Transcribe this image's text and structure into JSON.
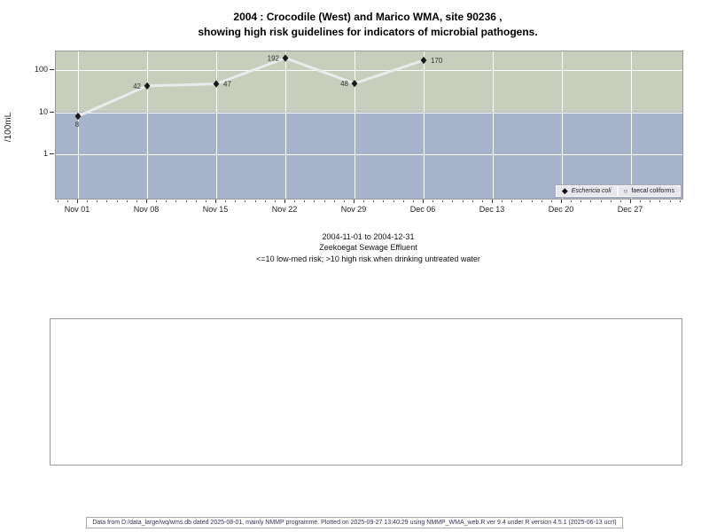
{
  "title": {
    "line1": "2004 : Crocodile (West) and Marico WMA, site 90236 ,",
    "line2": "showing high risk guidelines for indicators of microbial pathogens."
  },
  "chart_data": {
    "type": "line",
    "title": "2004 : Crocodile (West) and Marico WMA, site 90236 , showing high risk guidelines for indicators of microbial pathogens.",
    "ylabel": "/100mL",
    "y_scale": "log10",
    "y_ticks": [
      100,
      10,
      1
    ],
    "x_tick_labels": [
      "Nov 01",
      "Nov 08",
      "Nov 15",
      "Nov 22",
      "Nov 29",
      "Dec 06",
      "Dec 13",
      "Dec 20",
      "Dec 27"
    ],
    "x_range": "2004-11-01 to 2004-12-31",
    "guideline": {
      "threshold": 10,
      "note": "<=10 low-med risk; >10 high risk when drinking untreated water",
      "above_color": "#c7cebc",
      "below_color": "#a7b3cb"
    },
    "grid": true,
    "legend_position": "bottom-right",
    "series": [
      {
        "name": "Eschericia coli",
        "marker": "filled-diamond",
        "line_color": "#ebebeb",
        "marker_color": "#1a1a1a",
        "points": [
          {
            "date": "2004-11-01",
            "day": 0,
            "value": 8,
            "label": "8",
            "label_side": "below"
          },
          {
            "date": "2004-11-08",
            "day": 7,
            "value": 42,
            "label": "42",
            "label_side": "left"
          },
          {
            "date": "2004-11-15",
            "day": 14,
            "value": 47,
            "label": "47",
            "label_side": "right"
          },
          {
            "date": "2004-11-22",
            "day": 21,
            "value": 192,
            "label": "192",
            "label_side": "left"
          },
          {
            "date": "2004-11-29",
            "day": 28,
            "value": 48,
            "label": "48",
            "label_side": "left"
          },
          {
            "date": "2004-12-06",
            "day": 35,
            "value": 170,
            "label": "170",
            "label_side": "right"
          }
        ]
      },
      {
        "name": "faecal coliforms",
        "marker": "open-circle",
        "points": []
      }
    ]
  },
  "legend": {
    "items": [
      {
        "label": "Eschericia coli"
      },
      {
        "label": "faecal coliforms"
      }
    ]
  },
  "caption": {
    "line1": "2004-11-01 to 2004-12-31",
    "line2": "Zeekoegat Sewage Effluent",
    "line3": "<=10 low-med risk; >10 high risk when drinking untreated water"
  },
  "footer": {
    "text": "Data from D:/data_large/wq/wms.db dated 2025-08-01, mainly NMMP programme. Plotted on 2025-09-27 13:40:29 using NMMP_WMA_web.R ver 9.4 under R version 4.5.1 (2025-06-13 ucrt)"
  }
}
